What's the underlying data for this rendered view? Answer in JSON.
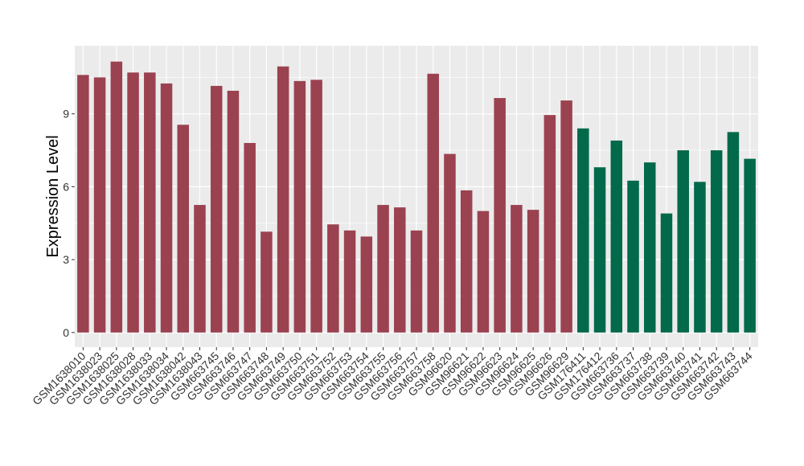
{
  "chart_data": {
    "type": "bar",
    "title": "",
    "xlabel": "",
    "ylabel": "Expression Level",
    "ylim": [
      -0.6,
      11.8
    ],
    "yticks": [
      0,
      3,
      6,
      9
    ],
    "grid": true,
    "legend": "none",
    "colors": {
      "group1": "#9b4250",
      "group2": "#02694b",
      "panel": "#ebebeb",
      "grid": "#ffffff"
    },
    "categories": [
      "GSM1638010",
      "GSM1638023",
      "GSM1638025",
      "GSM1638028",
      "GSM1638033",
      "GSM1638034",
      "GSM1638042",
      "GSM1638043",
      "GSM663745",
      "GSM663746",
      "GSM663747",
      "GSM663748",
      "GSM663749",
      "GSM663750",
      "GSM663751",
      "GSM663752",
      "GSM663753",
      "GSM663754",
      "GSM663755",
      "GSM663756",
      "GSM663757",
      "GSM663758",
      "GSM96620",
      "GSM96621",
      "GSM96622",
      "GSM96623",
      "GSM96624",
      "GSM96625",
      "GSM96626",
      "GSM96629",
      "GSM176411",
      "GSM176412",
      "GSM663736",
      "GSM663737",
      "GSM663738",
      "GSM663739",
      "GSM663740",
      "GSM663741",
      "GSM663742",
      "GSM663743",
      "GSM663744"
    ],
    "values": [
      10.6,
      10.5,
      11.15,
      10.7,
      10.7,
      10.25,
      8.55,
      5.25,
      10.15,
      9.95,
      7.8,
      4.15,
      10.95,
      10.35,
      10.4,
      4.45,
      4.2,
      3.95,
      5.25,
      5.15,
      4.2,
      10.65,
      7.35,
      5.85,
      5.0,
      9.65,
      5.25,
      5.05,
      8.95,
      9.55,
      8.4,
      6.8,
      7.9,
      6.25,
      7.0,
      4.9,
      7.5,
      6.2,
      7.5,
      8.25,
      7.15
    ],
    "groups": [
      "group1",
      "group1",
      "group1",
      "group1",
      "group1",
      "group1",
      "group1",
      "group1",
      "group1",
      "group1",
      "group1",
      "group1",
      "group1",
      "group1",
      "group1",
      "group1",
      "group1",
      "group1",
      "group1",
      "group1",
      "group1",
      "group1",
      "group1",
      "group1",
      "group1",
      "group1",
      "group1",
      "group1",
      "group1",
      "group1",
      "group2",
      "group2",
      "group2",
      "group2",
      "group2",
      "group2",
      "group2",
      "group2",
      "group2",
      "group2",
      "group2"
    ]
  }
}
